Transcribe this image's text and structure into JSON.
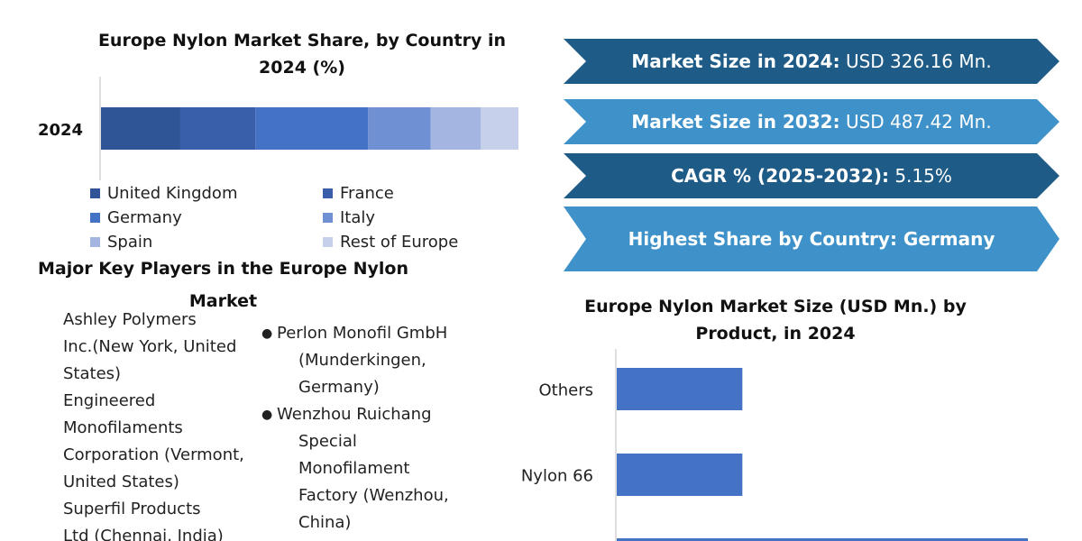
{
  "left_panel": {
    "share_title": "Europe Nylon Market Share, by Country in 2024 (%)",
    "players_title": "Major Key Players in the Europe Nylon Market",
    "players_left": [
      "Ashley Polymers",
      "Inc.(New York, United",
      "States)",
      "Engineered",
      "Monofilaments",
      "Corporation (Vermont,",
      "United States)",
      "Superfil Products",
      "Ltd (Chennai, India)"
    ],
    "players_right": [
      {
        "line1": "Perlon Monofil GmbH",
        "rest": [
          "(Munderkingen,",
          "Germany)"
        ]
      },
      {
        "line1": "Wenzhou Ruichang",
        "rest": [
          "Special",
          "Monofilament",
          "Factory (Wenzhou,",
          "China)"
        ]
      }
    ],
    "bullet_char": "●"
  },
  "banners": [
    {
      "label": "Market Size in 2024:",
      "value": " USD 326.16 Mn.",
      "color": "#1e5b86"
    },
    {
      "label": "Market Size in 2032:",
      "value": " USD 487.42 Mn.",
      "color": "#3f92c9"
    },
    {
      "label": "CAGR % (2025-2032):",
      "value": " 5.15%",
      "color": "#1e5b86"
    },
    {
      "label": "Highest Share by Country: Germany",
      "value": "",
      "color": "#3f92c9"
    }
  ],
  "chart_data": [
    {
      "type": "bar",
      "orientation": "horizontal-stacked",
      "title": "Europe Nylon Market Share, by Country in 2024 (%)",
      "categories": [
        "2024"
      ],
      "series": [
        {
          "name": "United Kingdom",
          "values": [
            19
          ],
          "color": "#2f5597"
        },
        {
          "name": "France",
          "values": [
            18
          ],
          "color": "#3a5faa"
        },
        {
          "name": "Germany",
          "values": [
            27
          ],
          "color": "#4472c4"
        },
        {
          "name": "Italy",
          "values": [
            15
          ],
          "color": "#7090d4"
        },
        {
          "name": "Spain",
          "values": [
            12
          ],
          "color": "#a3b5e0"
        },
        {
          "name": "Rest of Europe",
          "values": [
            9
          ],
          "color": "#c7d0eb"
        }
      ],
      "xlim": [
        0,
        100
      ],
      "legend": "bottom",
      "grid": false
    },
    {
      "type": "bar",
      "orientation": "horizontal",
      "title": "Europe Nylon Market  Size (USD Mn.) by Product, in 2024",
      "categories": [
        "Others",
        "Nylon 66"
      ],
      "values": [
        55,
        55
      ],
      "color": "#4472c4",
      "xlim": [
        0,
        180
      ],
      "grid": false
    }
  ]
}
